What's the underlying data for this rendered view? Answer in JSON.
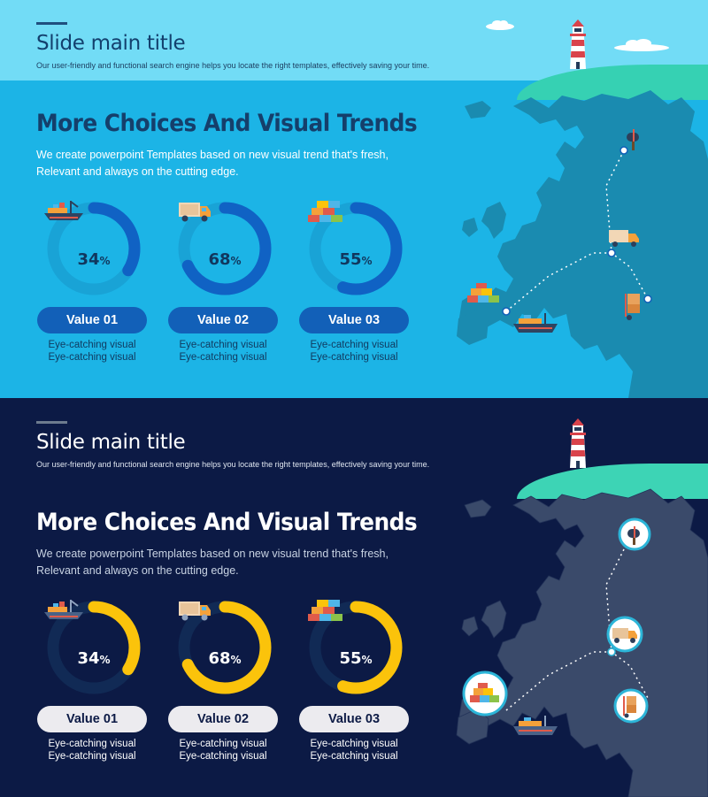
{
  "slides": [
    {
      "theme": "light",
      "title": "Slide main title",
      "subtitle": "Our user-friendly and functional search engine helps you locate the right templates, effectively saving your time.",
      "heading": "More Choices And Visual Trends",
      "description_line1": "We create powerpoint Templates based on new visual trend that's fresh,",
      "description_line2": "Relevant and always on the cutting edge.",
      "kpis": [
        {
          "number": "34",
          "unit": "%",
          "fraction": 0.34,
          "icon": "cargo-ship-icon",
          "label": "Value 01",
          "caption1": "Eye-catching visual",
          "caption2": "Eye-catching visual"
        },
        {
          "number": "68",
          "unit": "%",
          "fraction": 0.68,
          "icon": "delivery-truck-icon",
          "label": "Value 02",
          "caption1": "Eye-catching visual",
          "caption2": "Eye-catching visual"
        },
        {
          "number": "55",
          "unit": "%",
          "fraction": 0.55,
          "icon": "container-stack-icon",
          "label": "Value 03",
          "caption1": "Eye-catching visual",
          "caption2": "Eye-catching visual"
        }
      ],
      "colors": {
        "background": "#1cb4e6",
        "header": "#72dcf6",
        "ring_track": "#19a3d6",
        "ring_fill": "#1062c4",
        "map": "#1a8bb0"
      }
    },
    {
      "theme": "dark",
      "title": "Slide main title",
      "subtitle": "Our user-friendly and functional search engine helps you locate the right templates, effectively saving your time.",
      "heading": "More Choices And Visual Trends",
      "description_line1": "We create powerpoint Templates based on new visual trend that's fresh,",
      "description_line2": "Relevant and always on the cutting edge.",
      "kpis": [
        {
          "number": "34",
          "unit": "%",
          "fraction": 0.34,
          "icon": "cargo-ship-icon",
          "label": "Value 01",
          "caption1": "Eye-catching visual",
          "caption2": "Eye-catching visual"
        },
        {
          "number": "68",
          "unit": "%",
          "fraction": 0.68,
          "icon": "delivery-truck-icon",
          "label": "Value 02",
          "caption1": "Eye-catching visual",
          "caption2": "Eye-catching visual"
        },
        {
          "number": "55",
          "unit": "%",
          "fraction": 0.55,
          "icon": "container-stack-icon",
          "label": "Value 03",
          "caption1": "Eye-catching visual",
          "caption2": "Eye-catching visual"
        }
      ],
      "colors": {
        "background": "#0c1a45",
        "header": "#0c1a45",
        "ring_track": "#112a55",
        "ring_fill": "#fbc30b",
        "map": "#3a4a6a"
      }
    }
  ]
}
